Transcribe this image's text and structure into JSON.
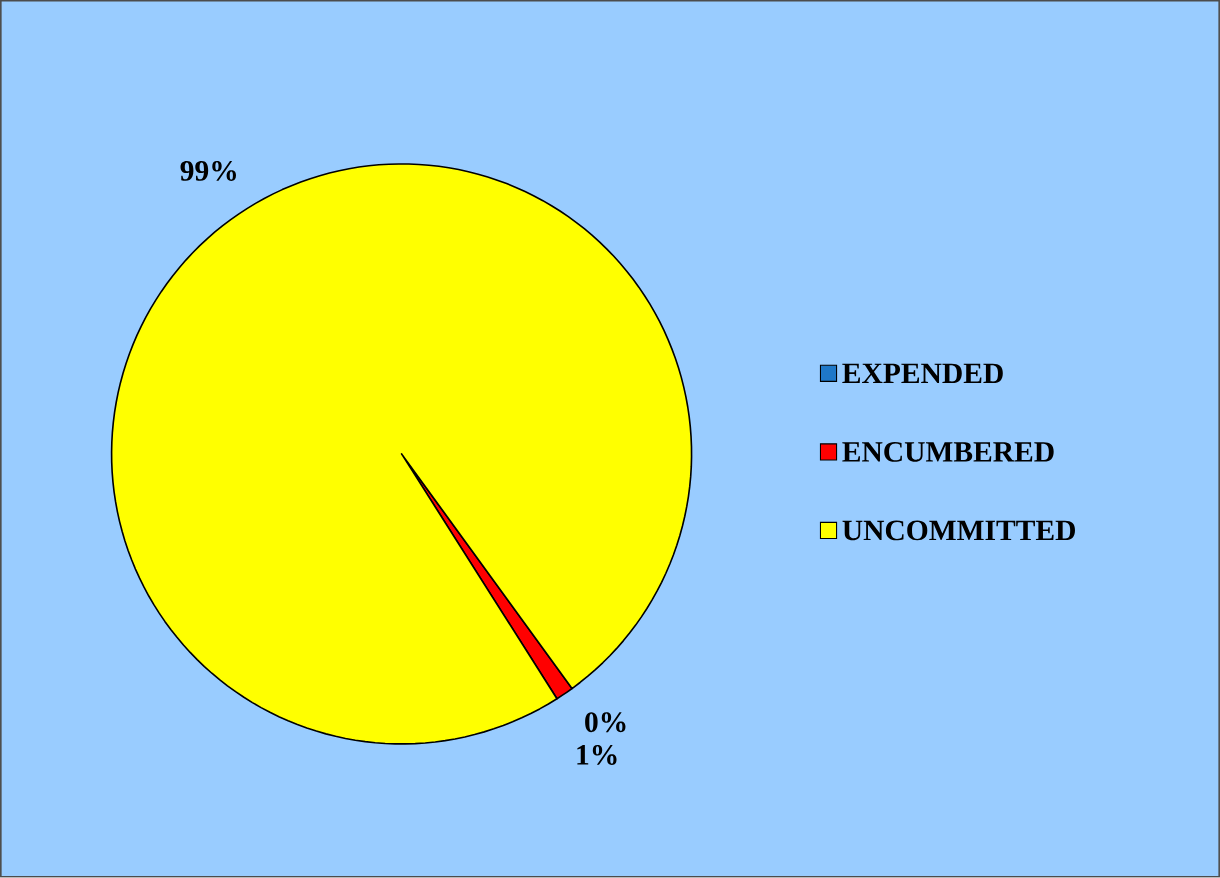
{
  "chart_data": {
    "type": "pie",
    "categories": [
      "EXPENDED",
      "ENCUMBERED",
      "UNCOMMITTED"
    ],
    "values": [
      0,
      1,
      99
    ],
    "colors": [
      "#1f78c8",
      "#ff0000",
      "#ffff00"
    ],
    "value_labels": [
      "0%",
      "1%",
      "99%"
    ],
    "legend": "right"
  }
}
